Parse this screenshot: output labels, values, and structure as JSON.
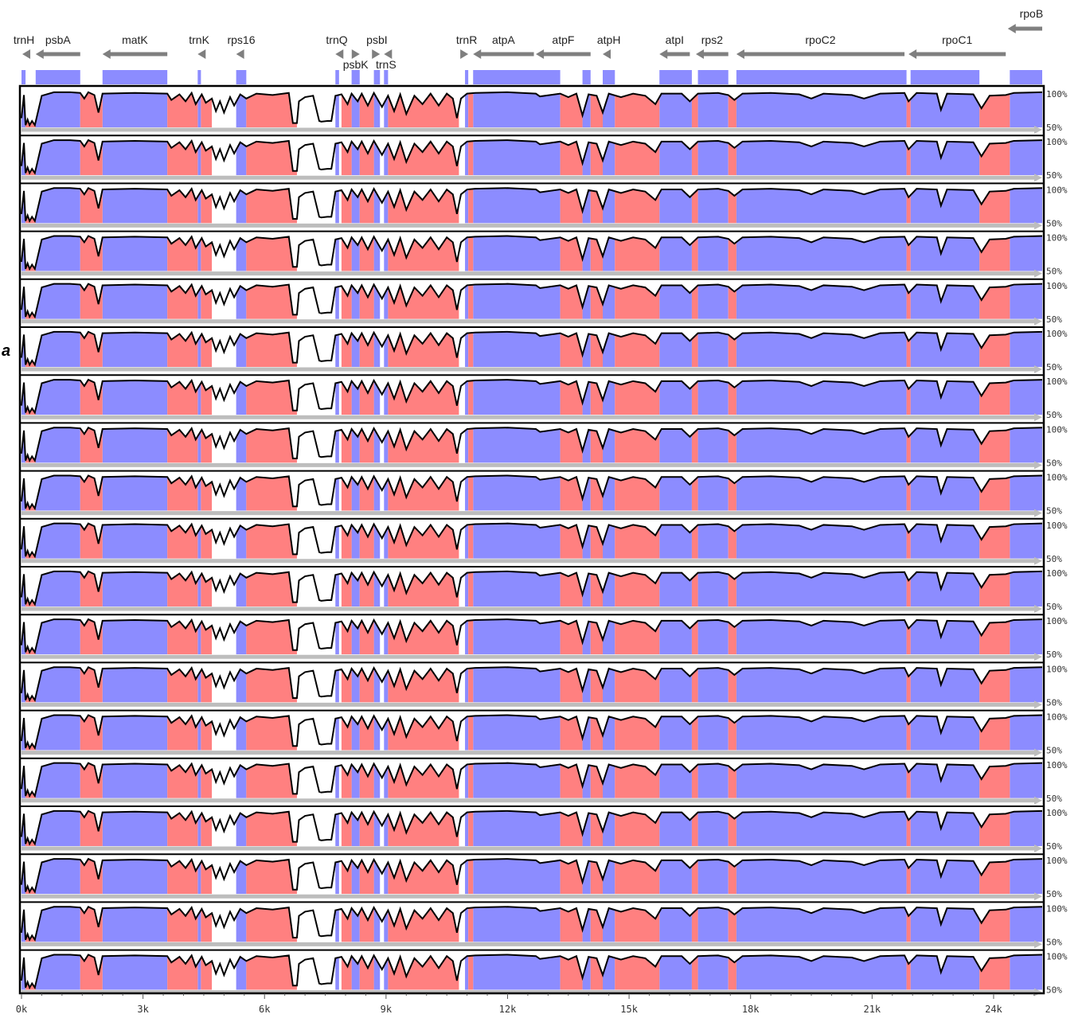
{
  "panel_letter": "a",
  "colors": {
    "exon": "#8c8cff",
    "noncoding": "#ff8080",
    "arrow": "#7f7f7f",
    "baseline": "#bdbdbd",
    "curve": "#000000",
    "border": "#000000"
  },
  "chart_data": {
    "type": "area",
    "title": "",
    "xlabel": "",
    "ylabel": "",
    "xlim": [
      0,
      25200
    ],
    "ylim": [
      50,
      100
    ],
    "x_ticks": [
      {
        "value": 0,
        "label": "0k"
      },
      {
        "value": 3000,
        "label": "3k"
      },
      {
        "value": 6000,
        "label": "6k"
      },
      {
        "value": 9000,
        "label": "9k"
      },
      {
        "value": 12000,
        "label": "12k"
      },
      {
        "value": 15000,
        "label": "15k"
      },
      {
        "value": 18000,
        "label": "18k"
      },
      {
        "value": 21000,
        "label": "21k"
      },
      {
        "value": 24000,
        "label": "24k"
      }
    ],
    "y_tick_labels": [
      "100%",
      "50%"
    ],
    "track_count": 19,
    "genes": [
      {
        "name": "trnH",
        "start": 20,
        "end": 100,
        "strand": "-",
        "row": 0
      },
      {
        "name": "psbA",
        "start": 350,
        "end": 1450,
        "strand": "-",
        "row": 0
      },
      {
        "name": "matK",
        "start": 2000,
        "end": 3600,
        "strand": "-",
        "row": 0
      },
      {
        "name": "trnK",
        "start": 4350,
        "end": 4420,
        "strand": "-",
        "row": 0
      },
      {
        "name": "rps16",
        "start": 5300,
        "end": 5550,
        "strand": "-",
        "row": 0
      },
      {
        "name": "trnQ",
        "start": 7750,
        "end": 7820,
        "strand": "-",
        "row": 0
      },
      {
        "name": "psbK",
        "start": 8150,
        "end": 8350,
        "strand": "+",
        "row": 1
      },
      {
        "name": "psbI",
        "start": 8700,
        "end": 8850,
        "strand": "+",
        "row": 0
      },
      {
        "name": "trnS",
        "start": 8950,
        "end": 9050,
        "strand": "-",
        "row": 1
      },
      {
        "name": "trnR",
        "start": 10950,
        "end": 11030,
        "strand": "+",
        "row": 0
      },
      {
        "name": "atpA",
        "start": 11150,
        "end": 12650,
        "strand": "-",
        "row": 0
      },
      {
        "name": "atpF",
        "start": 12700,
        "end": 14050,
        "strand": "-",
        "row": 0
      },
      {
        "name": "atpH",
        "start": 14350,
        "end": 14650,
        "strand": "-",
        "row": 0
      },
      {
        "name": "atpI",
        "start": 15750,
        "end": 16500,
        "strand": "-",
        "row": 0
      },
      {
        "name": "rps2",
        "start": 16650,
        "end": 17450,
        "strand": "-",
        "row": 0
      },
      {
        "name": "rpoC2",
        "start": 17650,
        "end": 21800,
        "strand": "-",
        "row": 0
      },
      {
        "name": "rpoC1",
        "start": 21900,
        "end": 24300,
        "strand": "-",
        "row": 0
      },
      {
        "name": "rpoB",
        "start": 24350,
        "end": 25200,
        "strand": "-",
        "row": -1
      }
    ],
    "region_bands": [
      {
        "type": "exon",
        "start": 0,
        "end": 100
      },
      {
        "type": "exon",
        "start": 350,
        "end": 1450
      },
      {
        "type": "exon",
        "start": 2000,
        "end": 3600
      },
      {
        "type": "exon",
        "start": 4350,
        "end": 4430
      },
      {
        "type": "exon",
        "start": 5300,
        "end": 5550
      },
      {
        "type": "exon",
        "start": 7750,
        "end": 7840
      },
      {
        "type": "exon",
        "start": 8150,
        "end": 8350
      },
      {
        "type": "exon",
        "start": 8700,
        "end": 8850
      },
      {
        "type": "exon",
        "start": 8950,
        "end": 9050
      },
      {
        "type": "exon",
        "start": 10950,
        "end": 11030
      },
      {
        "type": "exon",
        "start": 11150,
        "end": 13300
      },
      {
        "type": "exon",
        "start": 13850,
        "end": 14050
      },
      {
        "type": "exon",
        "start": 14350,
        "end": 14650
      },
      {
        "type": "exon",
        "start": 15750,
        "end": 16550
      },
      {
        "type": "exon",
        "start": 16700,
        "end": 17450
      },
      {
        "type": "exon",
        "start": 17650,
        "end": 21850
      },
      {
        "type": "exon",
        "start": 21950,
        "end": 23650
      },
      {
        "type": "exon",
        "start": 24400,
        "end": 25200
      },
      {
        "type": "noncoding",
        "start": 100,
        "end": 350
      },
      {
        "type": "noncoding",
        "start": 1450,
        "end": 2000
      },
      {
        "type": "noncoding",
        "start": 3600,
        "end": 4350
      },
      {
        "type": "noncoding",
        "start": 4430,
        "end": 4700
      },
      {
        "type": "noncoding",
        "start": 5550,
        "end": 6800
      },
      {
        "type": "noncoding",
        "start": 7900,
        "end": 8150
      },
      {
        "type": "noncoding",
        "start": 8350,
        "end": 8700
      },
      {
        "type": "noncoding",
        "start": 9050,
        "end": 10800
      },
      {
        "type": "noncoding",
        "start": 11030,
        "end": 11150
      },
      {
        "type": "noncoding",
        "start": 13300,
        "end": 13850
      },
      {
        "type": "noncoding",
        "start": 14050,
        "end": 14350
      },
      {
        "type": "noncoding",
        "start": 14650,
        "end": 15750
      },
      {
        "type": "noncoding",
        "start": 16550,
        "end": 16700
      },
      {
        "type": "noncoding",
        "start": 17450,
        "end": 17650
      },
      {
        "type": "noncoding",
        "start": 21850,
        "end": 21950
      },
      {
        "type": "noncoding",
        "start": 23650,
        "end": 24400
      }
    ],
    "identity_profile": [
      {
        "x": 0,
        "y": 62
      },
      {
        "x": 60,
        "y": 95
      },
      {
        "x": 100,
        "y": 52
      },
      {
        "x": 150,
        "y": 60
      },
      {
        "x": 200,
        "y": 52
      },
      {
        "x": 260,
        "y": 58
      },
      {
        "x": 330,
        "y": 52
      },
      {
        "x": 500,
        "y": 94
      },
      {
        "x": 800,
        "y": 99
      },
      {
        "x": 1200,
        "y": 99
      },
      {
        "x": 1450,
        "y": 98
      },
      {
        "x": 1550,
        "y": 90
      },
      {
        "x": 1650,
        "y": 99
      },
      {
        "x": 1800,
        "y": 95
      },
      {
        "x": 1900,
        "y": 70
      },
      {
        "x": 2000,
        "y": 97
      },
      {
        "x": 2800,
        "y": 98
      },
      {
        "x": 3600,
        "y": 97
      },
      {
        "x": 3700,
        "y": 88
      },
      {
        "x": 3900,
        "y": 96
      },
      {
        "x": 4050,
        "y": 86
      },
      {
        "x": 4200,
        "y": 98
      },
      {
        "x": 4300,
        "y": 82
      },
      {
        "x": 4450,
        "y": 96
      },
      {
        "x": 4550,
        "y": 84
      },
      {
        "x": 4700,
        "y": 90
      },
      {
        "x": 4800,
        "y": 72
      },
      {
        "x": 4900,
        "y": 86
      },
      {
        "x": 5000,
        "y": 70
      },
      {
        "x": 5150,
        "y": 92
      },
      {
        "x": 5250,
        "y": 80
      },
      {
        "x": 5400,
        "y": 96
      },
      {
        "x": 5550,
        "y": 90
      },
      {
        "x": 5800,
        "y": 97
      },
      {
        "x": 6200,
        "y": 95
      },
      {
        "x": 6600,
        "y": 98
      },
      {
        "x": 6700,
        "y": 55
      },
      {
        "x": 6800,
        "y": 55
      },
      {
        "x": 6850,
        "y": 86
      },
      {
        "x": 7000,
        "y": 92
      },
      {
        "x": 7200,
        "y": 94
      },
      {
        "x": 7350,
        "y": 58
      },
      {
        "x": 7400,
        "y": 57
      },
      {
        "x": 7550,
        "y": 58
      },
      {
        "x": 7650,
        "y": 58
      },
      {
        "x": 7750,
        "y": 94
      },
      {
        "x": 7900,
        "y": 96
      },
      {
        "x": 8050,
        "y": 82
      },
      {
        "x": 8150,
        "y": 97
      },
      {
        "x": 8300,
        "y": 86
      },
      {
        "x": 8400,
        "y": 97
      },
      {
        "x": 8550,
        "y": 80
      },
      {
        "x": 8700,
        "y": 98
      },
      {
        "x": 8900,
        "y": 78
      },
      {
        "x": 9050,
        "y": 94
      },
      {
        "x": 9200,
        "y": 72
      },
      {
        "x": 9350,
        "y": 96
      },
      {
        "x": 9500,
        "y": 68
      },
      {
        "x": 9700,
        "y": 94
      },
      {
        "x": 9900,
        "y": 82
      },
      {
        "x": 10100,
        "y": 97
      },
      {
        "x": 10300,
        "y": 80
      },
      {
        "x": 10500,
        "y": 97
      },
      {
        "x": 10650,
        "y": 90
      },
      {
        "x": 10750,
        "y": 62
      },
      {
        "x": 10850,
        "y": 90
      },
      {
        "x": 11000,
        "y": 97
      },
      {
        "x": 11200,
        "y": 98
      },
      {
        "x": 12000,
        "y": 99
      },
      {
        "x": 12700,
        "y": 97
      },
      {
        "x": 12800,
        "y": 93
      },
      {
        "x": 13300,
        "y": 97
      },
      {
        "x": 13500,
        "y": 92
      },
      {
        "x": 13700,
        "y": 97
      },
      {
        "x": 13850,
        "y": 66
      },
      {
        "x": 14000,
        "y": 96
      },
      {
        "x": 14200,
        "y": 94
      },
      {
        "x": 14350,
        "y": 70
      },
      {
        "x": 14500,
        "y": 97
      },
      {
        "x": 14800,
        "y": 92
      },
      {
        "x": 15100,
        "y": 97
      },
      {
        "x": 15400,
        "y": 94
      },
      {
        "x": 15650,
        "y": 82
      },
      {
        "x": 15800,
        "y": 97
      },
      {
        "x": 16300,
        "y": 97
      },
      {
        "x": 16500,
        "y": 86
      },
      {
        "x": 16700,
        "y": 97
      },
      {
        "x": 17200,
        "y": 98
      },
      {
        "x": 17450,
        "y": 95
      },
      {
        "x": 17600,
        "y": 88
      },
      {
        "x": 17800,
        "y": 97
      },
      {
        "x": 18500,
        "y": 98
      },
      {
        "x": 19200,
        "y": 96
      },
      {
        "x": 19500,
        "y": 90
      },
      {
        "x": 19800,
        "y": 97
      },
      {
        "x": 20500,
        "y": 95
      },
      {
        "x": 20800,
        "y": 90
      },
      {
        "x": 21200,
        "y": 97
      },
      {
        "x": 21800,
        "y": 98
      },
      {
        "x": 21900,
        "y": 86
      },
      {
        "x": 22100,
        "y": 98
      },
      {
        "x": 22600,
        "y": 97
      },
      {
        "x": 22700,
        "y": 74
      },
      {
        "x": 22850,
        "y": 97
      },
      {
        "x": 23500,
        "y": 96
      },
      {
        "x": 23700,
        "y": 76
      },
      {
        "x": 23900,
        "y": 94
      },
      {
        "x": 24300,
        "y": 95
      },
      {
        "x": 24500,
        "y": 98
      },
      {
        "x": 25200,
        "y": 99
      }
    ]
  }
}
